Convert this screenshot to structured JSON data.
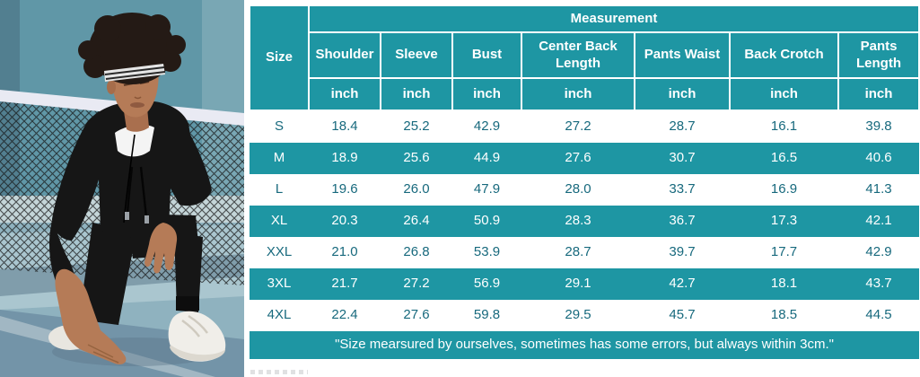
{
  "colors": {
    "teal": "#1e96a3",
    "dark_text": "#17697d",
    "wall": "#6097a7",
    "wall_shade": "#527f90",
    "sun_band": "#c4d5d8",
    "floor": "#8fb2bf",
    "floor_light": "#aac6cf",
    "floor_dark": "#7394a8",
    "net_tape": "#e9eaf3",
    "net_mesh": "#161616",
    "skin": "#b57b57",
    "outfit": "#161616",
    "hair": "#241a15",
    "shoe": "#f0eee9"
  },
  "photo": {
    "description": "Man with curly hair and striped headband wearing a black zip-up hoodie tracksuit and white sneakers, crouching on a blue tennis court in front of a net"
  },
  "table": {
    "measurement_header": "Measurement",
    "size_header": "Size",
    "columns": [
      "Shoulder",
      "Sleeve",
      "Bust",
      "Center Back Length",
      "Pants Waist",
      "Back Crotch",
      "Pants Length"
    ],
    "units": [
      "inch",
      "inch",
      "inch",
      "inch",
      "inch",
      "inch",
      "inch"
    ],
    "rows": [
      {
        "size": "S",
        "values": [
          "18.4",
          "25.2",
          "42.9",
          "27.2",
          "28.7",
          "16.1",
          "39.8"
        ]
      },
      {
        "size": "M",
        "values": [
          "18.9",
          "25.6",
          "44.9",
          "27.6",
          "30.7",
          "16.5",
          "40.6"
        ]
      },
      {
        "size": "L",
        "values": [
          "19.6",
          "26.0",
          "47.9",
          "28.0",
          "33.7",
          "16.9",
          "41.3"
        ]
      },
      {
        "size": "XL",
        "values": [
          "20.3",
          "26.4",
          "50.9",
          "28.3",
          "36.7",
          "17.3",
          "42.1"
        ]
      },
      {
        "size": "XXL",
        "values": [
          "21.0",
          "26.8",
          "53.9",
          "28.7",
          "39.7",
          "17.7",
          "42.9"
        ]
      },
      {
        "size": "3XL",
        "values": [
          "21.7",
          "27.2",
          "56.9",
          "29.1",
          "42.7",
          "18.1",
          "43.7"
        ]
      },
      {
        "size": "4XL",
        "values": [
          "22.4",
          "27.6",
          "59.8",
          "29.5",
          "45.7",
          "18.5",
          "44.5"
        ]
      }
    ],
    "footnote": "\"Size mearsured by ourselves, sometimes has some errors, but always within 3cm.\""
  }
}
